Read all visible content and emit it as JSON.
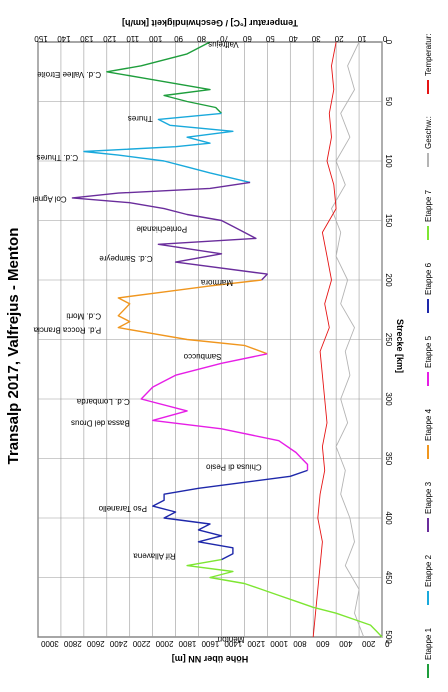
{
  "chart_data": {
    "type": "line",
    "title": "Transalp 2017, Valfrejus - Menton",
    "xlabel": "Strecke [km]",
    "ylabel": "Höhe über NN [m]",
    "y2label": "Temperatur [°C] / Geschwindigkeit [km/h]",
    "xlim": [
      0,
      500
    ],
    "ylim": [
      0,
      3000
    ],
    "y2lim": [
      0,
      150
    ],
    "x_ticks": [
      "0",
      "50",
      "100",
      "150",
      "200",
      "250",
      "300",
      "350",
      "400",
      "450",
      "500"
    ],
    "y_ticks": [
      "0",
      "200",
      "400",
      "600",
      "800",
      "1000",
      "1200",
      "1400",
      "1600",
      "1800",
      "2000",
      "2200",
      "2400",
      "2600",
      "2800",
      "3000"
    ],
    "y2_ticks": [
      "0",
      "10",
      "20",
      "30",
      "40",
      "50",
      "60",
      "70",
      "80",
      "90",
      "100",
      "110",
      "120",
      "130",
      "140",
      "150"
    ],
    "grid": true,
    "orientation": "rotated-90-clockwise",
    "legend_position": "bottom",
    "series": [
      {
        "name": "Etappe 1",
        "color": "#1e9e3c",
        "axis": "left",
        "x": [
          0,
          10,
          20,
          25,
          30,
          40,
          45,
          50,
          55,
          60
        ],
        "y": [
          1500,
          1700,
          2100,
          2400,
          2100,
          1500,
          1900,
          1700,
          1450,
          1400
        ]
      },
      {
        "name": "Etappe 2",
        "color": "#19a9dc",
        "axis": "left",
        "x": [
          60,
          65,
          70,
          75,
          80,
          85,
          88,
          92,
          95,
          100,
          105,
          110,
          118
        ],
        "y": [
          1400,
          1950,
          1850,
          1300,
          1700,
          1500,
          1800,
          2600,
          2300,
          1900,
          1700,
          1500,
          1150
        ]
      },
      {
        "name": "Etappe 3",
        "color": "#6a2d9c",
        "axis": "left",
        "x": [
          118,
          123,
          127,
          131,
          135,
          140,
          145,
          150,
          155,
          160,
          165,
          170,
          178,
          185,
          195,
          200
        ],
        "y": [
          1150,
          1500,
          2300,
          2700,
          2200,
          1900,
          1700,
          1400,
          1300,
          1200,
          1100,
          1950,
          1400,
          1800,
          1000,
          1050
        ]
      },
      {
        "name": "Etappe 4",
        "color": "#f0961e",
        "axis": "left",
        "x": [
          200,
          205,
          210,
          215,
          220,
          225,
          230,
          235,
          240,
          245,
          250,
          255,
          262
        ],
        "y": [
          1050,
          1500,
          1900,
          2300,
          2200,
          2250,
          2300,
          2200,
          2300,
          2000,
          1700,
          1200,
          1000
        ]
      },
      {
        "name": "Etappe 5",
        "color": "#e61ee6",
        "axis": "left",
        "x": [
          262,
          270,
          280,
          290,
          300,
          310,
          318,
          325,
          335,
          345,
          350,
          355,
          360
        ],
        "y": [
          1000,
          1400,
          1800,
          2000,
          2100,
          1700,
          2000,
          1400,
          900,
          750,
          700,
          650,
          650
        ]
      },
      {
        "name": "Etappe 6",
        "color": "#1e28aa",
        "axis": "left",
        "x": [
          360,
          365,
          370,
          375,
          380,
          385,
          390,
          395,
          400,
          405,
          410,
          415,
          420,
          425,
          430,
          435
        ],
        "y": [
          650,
          800,
          1200,
          1600,
          1900,
          1900,
          2000,
          1800,
          1900,
          1500,
          1600,
          1400,
          1600,
          1300,
          1300,
          1400
        ]
      },
      {
        "name": "Etappe 7",
        "color": "#7de632",
        "axis": "left",
        "x": [
          435,
          440,
          445,
          450,
          455,
          460,
          465,
          470,
          475,
          480,
          485,
          490,
          495,
          500
        ],
        "y": [
          1400,
          1700,
          1300,
          1500,
          1200,
          1050,
          900,
          750,
          600,
          400,
          250,
          100,
          50,
          0
        ]
      },
      {
        "name": "Geschw.:",
        "color": "#b4b4b4",
        "axis": "right",
        "x": [
          0,
          20,
          40,
          60,
          80,
          100,
          120,
          140,
          160,
          180,
          200,
          220,
          240,
          260,
          280,
          300,
          320,
          340,
          360,
          380,
          400,
          420,
          440,
          460,
          480,
          500
        ],
        "y": [
          10,
          15,
          12,
          18,
          14,
          20,
          16,
          22,
          18,
          20,
          15,
          18,
          12,
          16,
          14,
          18,
          15,
          20,
          16,
          18,
          14,
          12,
          16,
          10,
          12,
          8
        ]
      },
      {
        "name": "Temperatur:",
        "color": "#e61414",
        "axis": "right",
        "x": [
          0,
          20,
          40,
          60,
          80,
          100,
          120,
          140,
          160,
          180,
          200,
          220,
          240,
          260,
          280,
          300,
          320,
          340,
          360,
          380,
          400,
          420,
          440,
          460,
          480,
          500
        ],
        "y": [
          20,
          22,
          21,
          23,
          22,
          24,
          21,
          20,
          26,
          24,
          22,
          25,
          23,
          27,
          26,
          25,
          24,
          26,
          25,
          27,
          28,
          26,
          27,
          28,
          29,
          30
        ]
      }
    ],
    "annotations": [
      {
        "text": "Valfrejus",
        "x": 0,
        "y": 1250
      },
      {
        "text": "C.d. Vallee Etroite",
        "x": 25,
        "y": 2450
      },
      {
        "text": "Thures",
        "x": 62,
        "y": 2000
      },
      {
        "text": "C.d. Thures",
        "x": 95,
        "y": 2650
      },
      {
        "text": "Col Agnel",
        "x": 130,
        "y": 2750
      },
      {
        "text": "Pontechianale",
        "x": 155,
        "y": 1700
      },
      {
        "text": "C.d. Sampeyre",
        "x": 180,
        "y": 2000
      },
      {
        "text": "Marmora",
        "x": 200,
        "y": 1300
      },
      {
        "text": "C.d. Morti",
        "x": 228,
        "y": 2450
      },
      {
        "text": "P.d. Rocca Brancia",
        "x": 240,
        "y": 2450
      },
      {
        "text": "Sambucco",
        "x": 262,
        "y": 1400
      },
      {
        "text": "C.d. Lombarda",
        "x": 300,
        "y": 2200
      },
      {
        "text": "Bassa del Drous",
        "x": 318,
        "y": 2200
      },
      {
        "text": "Chiusa di Pesio",
        "x": 355,
        "y": 1050
      },
      {
        "text": "Pso Taranello",
        "x": 390,
        "y": 2050
      },
      {
        "text": "Rif Allavena",
        "x": 430,
        "y": 1800
      },
      {
        "text": "Menton",
        "x": 500,
        "y": 1200
      }
    ]
  }
}
